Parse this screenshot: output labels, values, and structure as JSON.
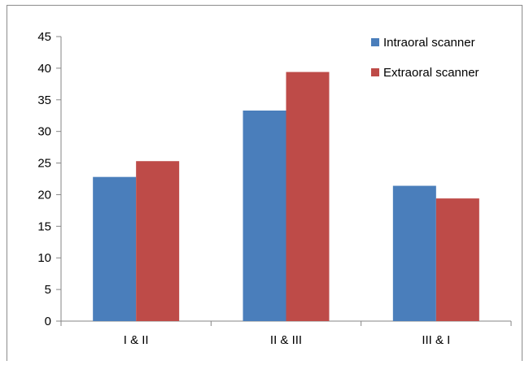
{
  "chart_data": {
    "type": "bar",
    "categories": [
      "I & II",
      "II & III",
      "III & I"
    ],
    "series": [
      {
        "name": "Intraoral scanner",
        "values": [
          22.8,
          33.3,
          21.4
        ],
        "color": "#4a7ebb"
      },
      {
        "name": "Extraoral scanner",
        "values": [
          25.3,
          39.4,
          19.4
        ],
        "color": "#be4b48"
      }
    ],
    "ylim": [
      0,
      45
    ],
    "yticks": [
      0,
      5,
      10,
      15,
      20,
      25,
      30,
      35,
      40,
      45
    ],
    "title": "",
    "xlabel": "",
    "ylabel": "",
    "grid": false,
    "legend_position": "top-right"
  }
}
